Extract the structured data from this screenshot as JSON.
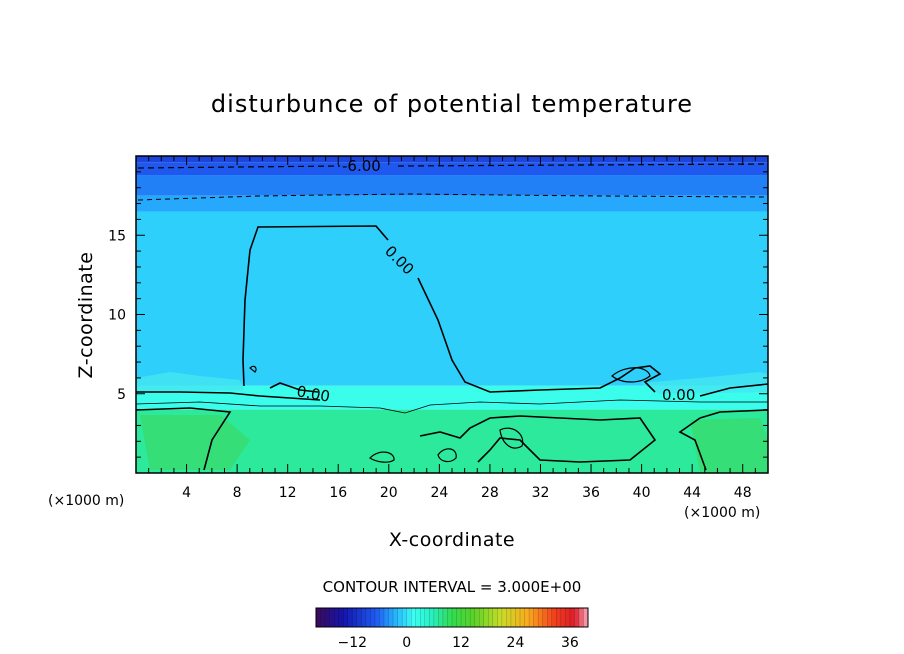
{
  "chart_data": {
    "type": "heatmap",
    "title": "disturbunce of potential temperature",
    "xlabel": "X-coordinate",
    "ylabel": "Z-coordinate",
    "x_unit": "(×1000 m)",
    "y_unit": "(×1000 m)",
    "xlim": [
      0,
      50
    ],
    "ylim": [
      0,
      20
    ],
    "x_ticks": [
      4,
      8,
      12,
      16,
      20,
      24,
      28,
      32,
      36,
      40,
      44,
      48
    ],
    "y_ticks": [
      5,
      10,
      15
    ],
    "grid": false,
    "contour_interval_text": "CONTOUR INTERVAL = 3.000E+00",
    "contour_labels": [
      "-6.00",
      "0.00",
      "0.00",
      "0.00"
    ],
    "colorbar": {
      "min": -20,
      "max": 40,
      "ticks": [
        -12,
        0,
        12,
        24,
        36
      ]
    },
    "approx_fields": {
      "z_bands": [
        {
          "z": [
            19.6,
            20.0
          ],
          "value": -9
        },
        {
          "z": [
            18.8,
            19.6
          ],
          "value": -7
        },
        {
          "z": [
            17.5,
            18.8
          ],
          "value": -5
        },
        {
          "z": [
            16.5,
            17.5
          ],
          "value": -3
        },
        {
          "z": [
            5.5,
            16.5
          ],
          "value": -1
        },
        {
          "z": [
            4.0,
            5.5
          ],
          "value": 2
        },
        {
          "z": [
            0.0,
            4.0
          ],
          "value": 7
        }
      ]
    }
  }
}
